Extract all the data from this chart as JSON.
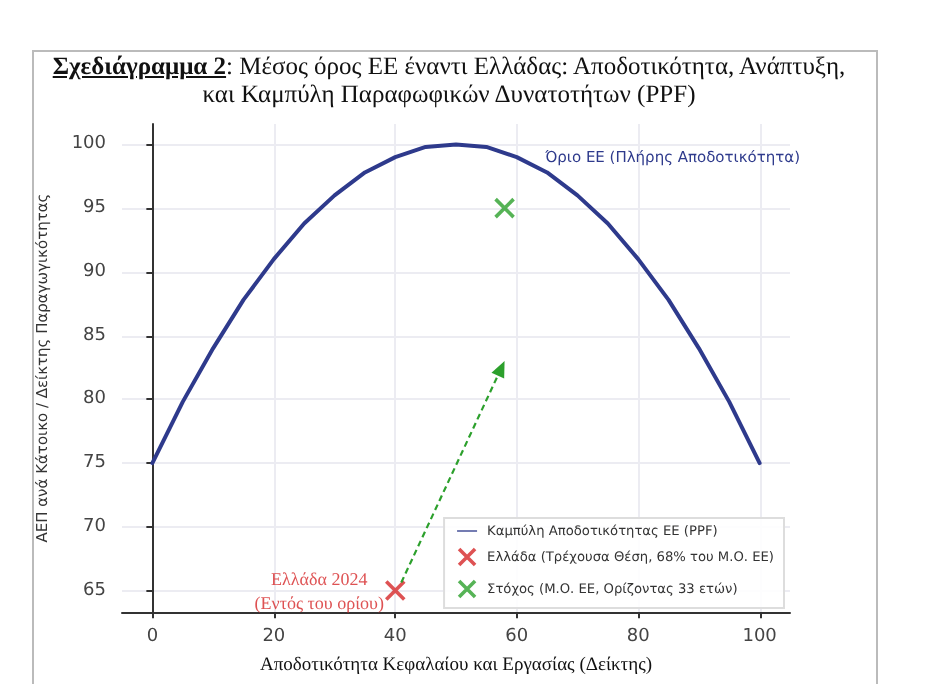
{
  "chart_data": {
    "type": "line",
    "title": "Σχεδιάγραμμα 2: Μέσος όρος ΕΕ έναντι Ελλάδας: Αποδοτικότητα, Ανάπτυξη, και Καμπύλη Παραφωφικών Δυνατοτήτων (PPF)",
    "xlabel": "Αποδοτικότητα Κεφαλαίου και Εργασίας (Δείκτης)",
    "ylabel": "ΑΕΠ ανά Κάτοικο / Δείκτης Παραγωγικότητας",
    "annotations": [
      "Όριο ΕΕ (Πλήρης Αποδοτικότητα)",
      {
        "text": "Ελλάδα 2024\n(Εντός του ορίου)",
        "x": 40,
        "y": 65
      }
    ],
    "series": [
      {
        "name": "Καμπύλη Αποδοτικότητας ΕΕ (PPF)",
        "color": "#2e3a8c",
        "marker": "none",
        "x": [
          0,
          5,
          10,
          15,
          20,
          25,
          30,
          35,
          40,
          45,
          50,
          55,
          60,
          65,
          70,
          75,
          80,
          85,
          90,
          95,
          100
        ],
        "values": [
          75,
          79.8,
          84,
          87.8,
          91,
          93.8,
          96,
          97.8,
          99,
          99.8,
          100,
          99.8,
          99,
          97.8,
          96,
          93.8,
          91,
          87.8,
          84,
          79.8,
          75
        ]
      },
      {
        "type": "scatter",
        "name": "Ελλάδα (Τρέχουσα Θέση, 68% του Μ.Ο. ΕΕ)",
        "color": "#d62728",
        "marker": "cross",
        "x": [
          40
        ],
        "values": [
          65
        ]
      },
      {
        "type": "scatter",
        "name": "Στόχος (Μ.Ο. ΕΕ, Ορίζοντας 33 ετών)",
        "color": "#2ca02c",
        "marker": "cross",
        "x": [
          58
        ],
        "values": [
          95
        ]
      }
    ],
    "xlim": [
      -5,
      105
    ],
    "xticks": [
      0,
      20,
      40,
      60,
      80,
      100
    ],
    "ylim": [
      63.3,
      101.6
    ],
    "yticks": [
      65,
      70,
      75,
      80,
      85,
      90,
      95,
      100
    ],
    "grid": true,
    "legend": "bottom right"
  }
}
